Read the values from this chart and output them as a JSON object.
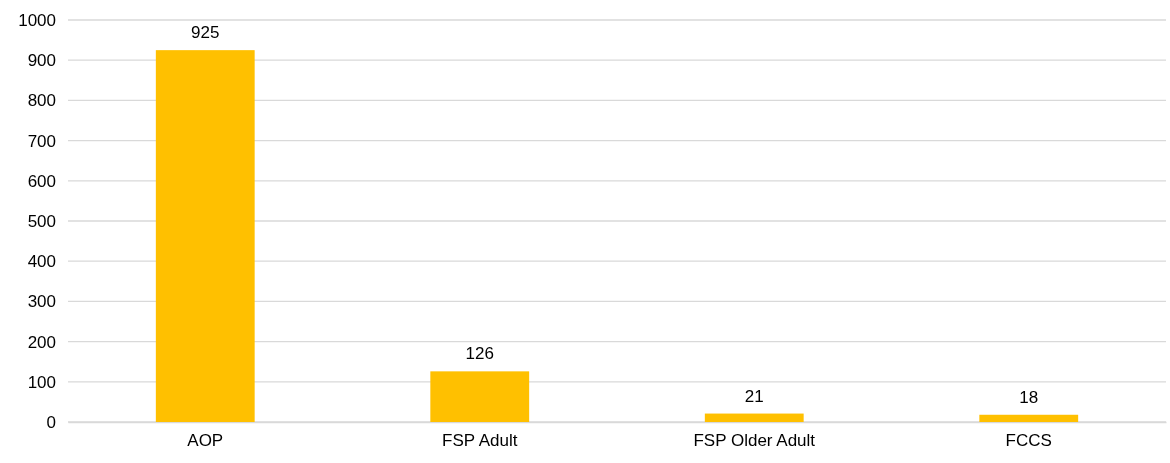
{
  "chart_data": {
    "type": "bar",
    "categories": [
      "AOP",
      "FSP Adult",
      "FSP Older Adult",
      "FCCS"
    ],
    "values": [
      925,
      126,
      21,
      18
    ],
    "color": "#ffc000",
    "ylim": [
      0,
      1000
    ],
    "yticks": [
      0,
      100,
      200,
      300,
      400,
      500,
      600,
      700,
      800,
      900,
      1000
    ],
    "grid": "y",
    "data_labels": true
  }
}
